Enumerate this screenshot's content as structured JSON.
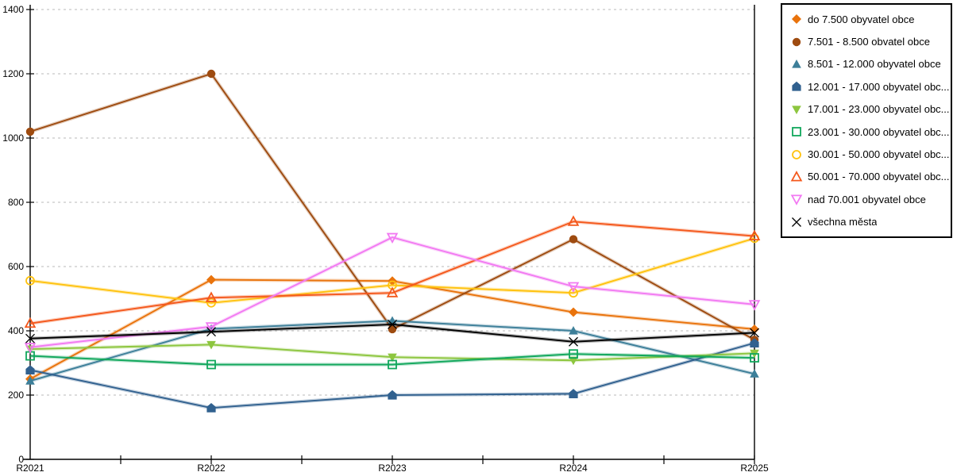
{
  "chart_data": {
    "type": "line",
    "title": "",
    "xlabel": "",
    "ylabel": "",
    "categories": [
      "R2021",
      "R2022",
      "R2023",
      "R2024",
      "R2025"
    ],
    "ylim": [
      0,
      1400
    ],
    "ytick_interval": 200,
    "ytick_labels": [
      "0",
      "200",
      "400",
      "600",
      "800",
      "1000",
      "1200",
      "1400"
    ],
    "grid": "horizontal-dashed",
    "legend_position": "right",
    "axis_color": "#000000",
    "grid_color": "#b8b8b8",
    "series": [
      {
        "name": "do 7.500 obyvatel obce",
        "marker": "diamond-filled",
        "color": "#E9730C",
        "values": [
          250,
          559,
          555,
          458,
          405
        ]
      },
      {
        "name": "7.501 - 8.500 obvatel obce",
        "marker": "circle-filled",
        "color": "#9E4B10",
        "values": [
          1020,
          1200,
          405,
          685,
          372
        ]
      },
      {
        "name": "8.501 - 12.000 obyvatel obce",
        "marker": "triangle-up-filled",
        "color": "#3D7F99",
        "values": [
          244,
          406,
          431,
          400,
          266
        ]
      },
      {
        "name": "12.001 - 17.000 obyvatel obc...",
        "marker": "pentagon-filled",
        "color": "#31618F",
        "values": [
          278,
          160,
          200,
          204,
          362
        ]
      },
      {
        "name": "17.001 - 23.000 obyvatel obc...",
        "marker": "triangle-down-filled",
        "color": "#8DC63F",
        "values": [
          343,
          357,
          318,
          308,
          330
        ]
      },
      {
        "name": "23.001 - 30.000 obyvatel obc...",
        "marker": "square-hollow",
        "color": "#11A75C",
        "values": [
          322,
          295,
          295,
          328,
          316
        ]
      },
      {
        "name": "30.001 - 50.000 obyvatel obc...",
        "marker": "circle-hollow",
        "color": "#FFC20E",
        "values": [
          556,
          487,
          542,
          518,
          688
        ]
      },
      {
        "name": "50.001 - 70.000 obyvatel obc...",
        "marker": "triangle-up-hollow",
        "color": "#F4581C",
        "values": [
          423,
          503,
          518,
          740,
          695
        ]
      },
      {
        "name": "nad 70.001 obyvatel obce",
        "marker": "triangle-down-hollow",
        "color": "#F279F2",
        "values": [
          349,
          413,
          691,
          538,
          482
        ]
      },
      {
        "name": "všechna města",
        "marker": "x",
        "color": "#000000",
        "values": [
          376,
          397,
          420,
          366,
          394
        ]
      }
    ]
  }
}
